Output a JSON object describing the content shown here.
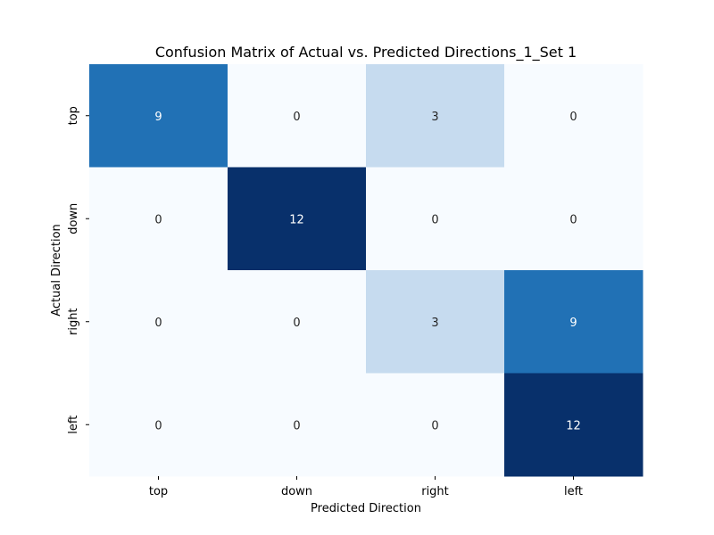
{
  "chart_data": {
    "type": "heatmap",
    "title": "Confusion Matrix of Actual vs. Predicted Directions_1_Set 1",
    "xlabel": "Predicted Direction",
    "ylabel": "Actual Direction",
    "x_categories": [
      "top",
      "down",
      "right",
      "left"
    ],
    "y_categories": [
      "top",
      "down",
      "right",
      "left"
    ],
    "values": [
      [
        9,
        0,
        3,
        0
      ],
      [
        0,
        12,
        0,
        0
      ],
      [
        0,
        0,
        3,
        9
      ],
      [
        0,
        0,
        0,
        12
      ]
    ],
    "colormap": "Blues",
    "value_range": [
      0,
      12
    ],
    "colorbar": false,
    "grid": false
  }
}
